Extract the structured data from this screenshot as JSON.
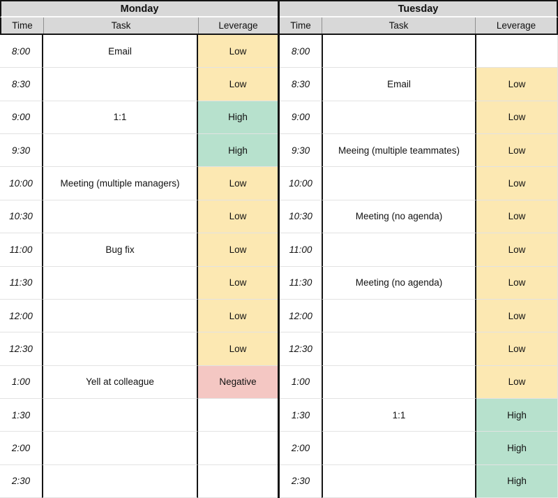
{
  "colors": {
    "header_bg": "#d8d8d8",
    "low": "#fce8b2",
    "high": "#b7e1cd",
    "negative": "#f4c7c3",
    "selection_blue": "#1a73e8",
    "grid_light": "#e2e2e2"
  },
  "selection": {
    "day": "Tuesday",
    "time": "2:30",
    "edge": "bottom"
  },
  "table": {
    "days": [
      {
        "name": "Monday",
        "columns": [
          "Time",
          "Task",
          "Leverage"
        ],
        "rows": [
          {
            "time": "8:00",
            "task": "Email",
            "leverage": "Low"
          },
          {
            "time": "8:30",
            "task": "",
            "leverage": "Low"
          },
          {
            "time": "9:00",
            "task": "1:1",
            "leverage": "High"
          },
          {
            "time": "9:30",
            "task": "",
            "leverage": "High"
          },
          {
            "time": "10:00",
            "task": "Meeting (multiple managers)",
            "leverage": "Low"
          },
          {
            "time": "10:30",
            "task": "",
            "leverage": "Low"
          },
          {
            "time": "11:00",
            "task": "Bug fix",
            "leverage": "Low"
          },
          {
            "time": "11:30",
            "task": "",
            "leverage": "Low"
          },
          {
            "time": "12:00",
            "task": "",
            "leverage": "Low"
          },
          {
            "time": "12:30",
            "task": "",
            "leverage": "Low"
          },
          {
            "time": "1:00",
            "task": "Yell at colleague",
            "leverage": "Negative"
          },
          {
            "time": "1:30",
            "task": "",
            "leverage": ""
          },
          {
            "time": "2:00",
            "task": "",
            "leverage": ""
          },
          {
            "time": "2:30",
            "task": "",
            "leverage": ""
          }
        ]
      },
      {
        "name": "Tuesday",
        "columns": [
          "Time",
          "Task",
          "Leverage"
        ],
        "rows": [
          {
            "time": "8:00",
            "task": "",
            "leverage": ""
          },
          {
            "time": "8:30",
            "task": "Email",
            "leverage": "Low"
          },
          {
            "time": "9:00",
            "task": "",
            "leverage": "Low"
          },
          {
            "time": "9:30",
            "task": "Meeing (multiple teammates)",
            "leverage": "Low"
          },
          {
            "time": "10:00",
            "task": "",
            "leverage": "Low"
          },
          {
            "time": "10:30",
            "task": "Meeting (no agenda)",
            "leverage": "Low"
          },
          {
            "time": "11:00",
            "task": "",
            "leverage": "Low"
          },
          {
            "time": "11:30",
            "task": "Meeting (no agenda)",
            "leverage": "Low"
          },
          {
            "time": "12:00",
            "task": "",
            "leverage": "Low"
          },
          {
            "time": "12:30",
            "task": "",
            "leverage": "Low"
          },
          {
            "time": "1:00",
            "task": "",
            "leverage": "Low"
          },
          {
            "time": "1:30",
            "task": "1:1",
            "leverage": "High"
          },
          {
            "time": "2:00",
            "task": "",
            "leverage": "High"
          },
          {
            "time": "2:30",
            "task": "",
            "leverage": "High"
          }
        ]
      }
    ]
  }
}
